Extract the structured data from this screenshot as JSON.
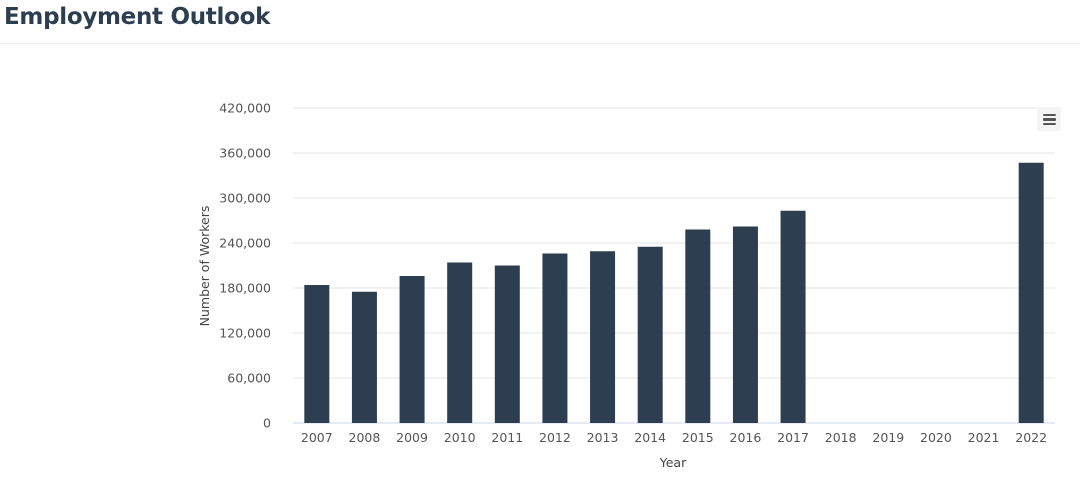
{
  "page": {
    "title": "Employment Outlook"
  },
  "colors": {
    "bar": "#2c3e50",
    "grid": "#e6e6e6",
    "axis": "#ccd6eb"
  },
  "icons": {
    "menu": "hamburger-menu-icon"
  },
  "chart_data": {
    "type": "bar",
    "title": "",
    "xlabel": "Year",
    "ylabel": "Number of Workers",
    "categories": [
      "2007",
      "2008",
      "2009",
      "2010",
      "2011",
      "2012",
      "2013",
      "2014",
      "2015",
      "2016",
      "2017",
      "2018",
      "2019",
      "2020",
      "2021",
      "2022"
    ],
    "values": [
      184000,
      175000,
      196000,
      214000,
      210000,
      226000,
      229000,
      235000,
      258000,
      262000,
      283000,
      null,
      null,
      null,
      null,
      347000
    ],
    "ylim": [
      0,
      420000
    ],
    "yticks": [
      0,
      60000,
      120000,
      180000,
      240000,
      300000,
      360000,
      420000
    ],
    "ytick_labels": [
      "0",
      "60,000",
      "120,000",
      "180,000",
      "240,000",
      "300,000",
      "360,000",
      "420,000"
    ],
    "grid": true,
    "legend": "none"
  }
}
